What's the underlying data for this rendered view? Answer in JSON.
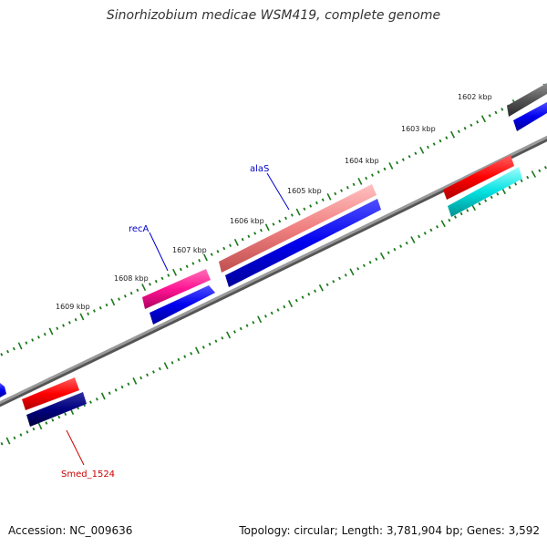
{
  "title": "Sinorhizobium medicae WSM419, complete genome",
  "footer": {
    "accession": "Accession: NC_009636",
    "summary": "Topology: circular; Length: 3,781,904 bp; Genes: 3,592"
  },
  "tick_labels": [
    "1602 kbp",
    "1603 kbp",
    "1604 kbp",
    "1605 kbp",
    "1606 kbp",
    "1607 kbp",
    "1608 kbp",
    "1609 kbp"
  ],
  "gene_labels": [
    {
      "name": "alaS",
      "color": "#0000cc"
    },
    {
      "name": "recA",
      "color": "#0000cc"
    },
    {
      "name": "Smed_1524",
      "color": "#cc0000"
    }
  ],
  "colors": {
    "backbone": "#808080",
    "ticks": "#1a7a1a",
    "red_gene": "#ff0000",
    "blue_gene": "#0000ee",
    "pink_gene": "#f08080",
    "magenta_gene": "#ff1493",
    "cyan_gene": "#00d0d0",
    "navy_gene": "#000080",
    "gray_gene": "#555555"
  }
}
